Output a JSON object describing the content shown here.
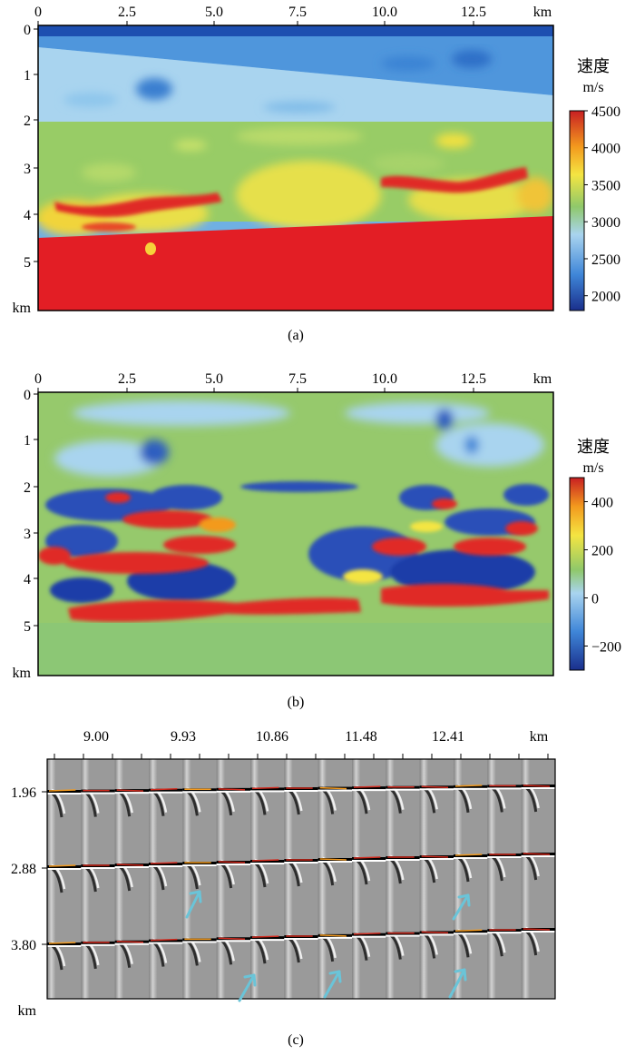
{
  "panels": {
    "a": {
      "caption": "(a)",
      "x_ticks": [
        "0",
        "2.5",
        "5.0",
        "7.5",
        "10.0",
        "12.5",
        "km"
      ],
      "y_ticks": [
        "0",
        "1",
        "2",
        "3",
        "4",
        "5",
        "km"
      ],
      "colorbar": {
        "title": "速度",
        "unit": "m/s",
        "ticks": [
          "4500",
          "4000",
          "3500",
          "3000",
          "2500",
          "2000"
        ],
        "min": 1800,
        "max": 4500
      }
    },
    "b": {
      "caption": "(b)",
      "x_ticks": [
        "0",
        "2.5",
        "5.0",
        "7.5",
        "10.0",
        "12.5",
        "km"
      ],
      "y_ticks": [
        "0",
        "1",
        "2",
        "3",
        "4",
        "5",
        "km"
      ],
      "colorbar": {
        "title": "速度",
        "unit": "m/s",
        "ticks": [
          "400",
          "200",
          "0",
          "−200"
        ],
        "min": -300,
        "max": 500
      }
    },
    "c": {
      "caption": "(c)",
      "x_ticks": [
        "9.00",
        "9.93",
        "10.86",
        "11.48",
        "12.41",
        "km"
      ],
      "y_ticks": [
        "1.96",
        "2.88",
        "3.80",
        "km"
      ]
    }
  },
  "colors": {
    "deep_blue": "#1a3d9c",
    "blue": "#3f86d8",
    "light_blue": "#a9d4ef",
    "green": "#8fc86a",
    "yellow": "#f4e542",
    "orange": "#f39a1e",
    "red": "#e02a25",
    "arrow": "#6ac4d8",
    "gather_gray": "#9a9a9a"
  }
}
